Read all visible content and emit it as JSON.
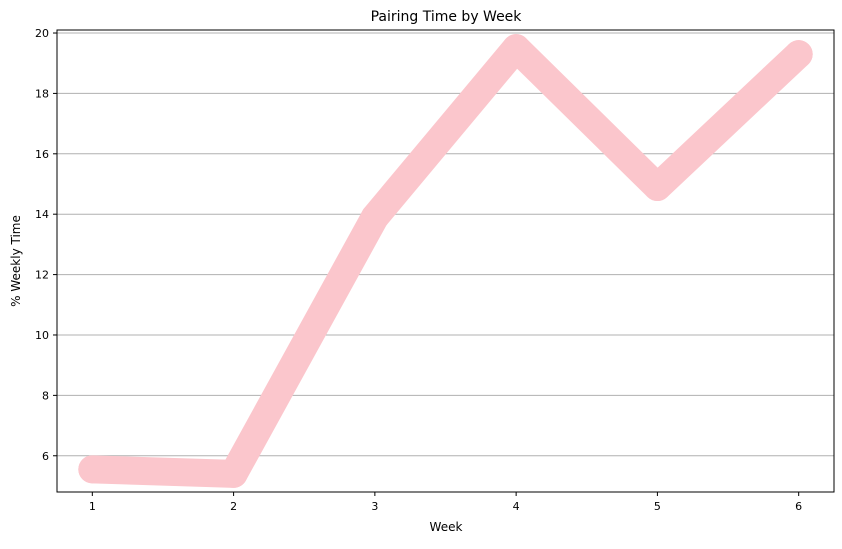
{
  "chart_data": {
    "type": "line",
    "title": "Pairing Time by Week",
    "xlabel": "Week",
    "ylabel": "% Weekly Time",
    "x": [
      1,
      2,
      3,
      4,
      5,
      6
    ],
    "series": [
      {
        "values": [
          5.55,
          5.4,
          13.9,
          19.5,
          14.9,
          19.3
        ],
        "color": "#fbc6cc"
      }
    ],
    "xlim": [
      0.75,
      6.25
    ],
    "ylim": [
      4.8,
      20.1
    ],
    "x_ticks": [
      1,
      2,
      3,
      4,
      5,
      6
    ],
    "y_ticks": [
      6,
      8,
      10,
      12,
      14,
      16,
      18,
      20
    ],
    "grid": "y-major",
    "grid_color": "#b0b0b0"
  }
}
